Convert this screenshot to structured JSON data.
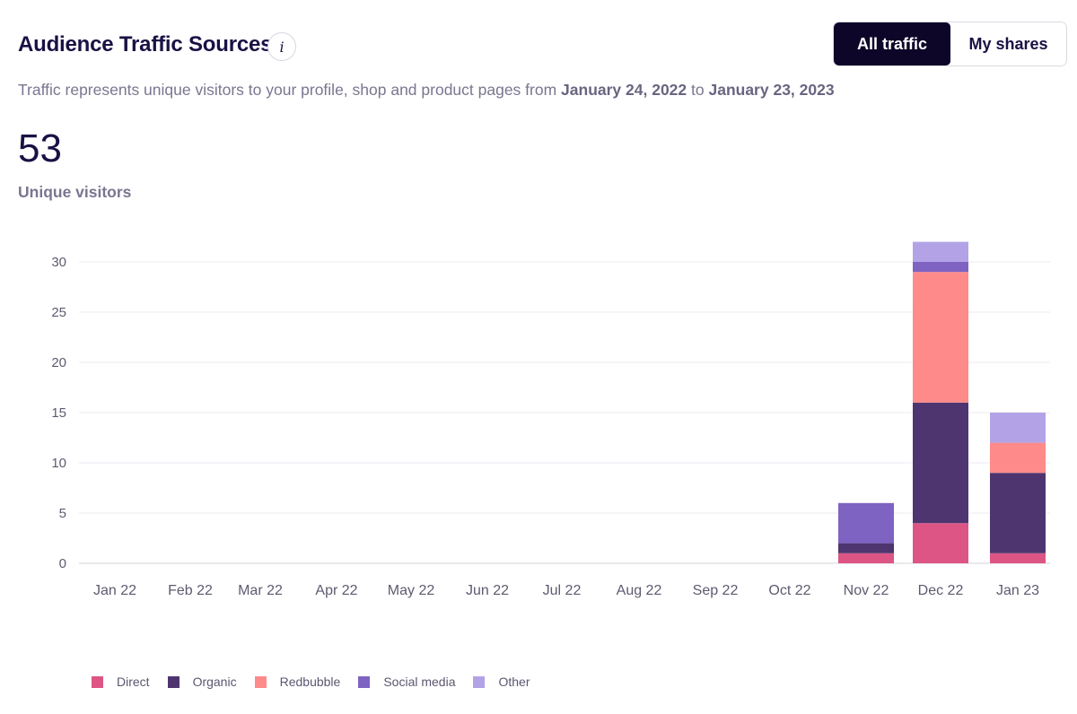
{
  "header": {
    "title": "Audience Traffic Sources",
    "info_label": "i",
    "toggle": {
      "all_label": "All traffic",
      "shares_label": "My shares"
    }
  },
  "subtitle": {
    "prefix": "Traffic represents unique visitors to your profile, shop and product pages from ",
    "start_date": "January 24, 2022",
    "connector": " to ",
    "end_date": "January 23, 2023"
  },
  "summary": {
    "value": "53",
    "label": "Unique visitors"
  },
  "chart_data": {
    "type": "bar",
    "stacked": true,
    "categories": [
      "Jan 22",
      "Feb 22",
      "Mar 22",
      "Apr 22",
      "May 22",
      "Jun 22",
      "Jul 22",
      "Aug 22",
      "Sep 22",
      "Oct 22",
      "Nov 22",
      "Dec 22",
      "Jan 23"
    ],
    "series": [
      {
        "name": "Direct",
        "color": "#dd5585",
        "values": [
          0,
          0,
          0,
          0,
          0,
          0,
          0,
          0,
          0,
          0,
          1,
          4,
          1
        ]
      },
      {
        "name": "Organic",
        "color": "#4f3570",
        "values": [
          0,
          0,
          0,
          0,
          0,
          0,
          0,
          0,
          0,
          0,
          1,
          12,
          8
        ]
      },
      {
        "name": "Redbubble",
        "color": "#ff8a8a",
        "values": [
          0,
          0,
          0,
          0,
          0,
          0,
          0,
          0,
          0,
          0,
          0,
          13,
          3
        ]
      },
      {
        "name": "Social media",
        "color": "#7e63c2",
        "values": [
          0,
          0,
          0,
          0,
          0,
          0,
          0,
          0,
          0,
          0,
          4,
          1,
          0
        ]
      },
      {
        "name": "Other",
        "color": "#b3a3e6",
        "values": [
          0,
          0,
          0,
          0,
          0,
          0,
          0,
          0,
          0,
          0,
          0,
          2,
          3
        ]
      }
    ],
    "yticks": [
      0,
      5,
      10,
      15,
      20,
      25,
      30
    ],
    "ylim": [
      0,
      32
    ],
    "grid": true,
    "legend": "bottom-left"
  }
}
